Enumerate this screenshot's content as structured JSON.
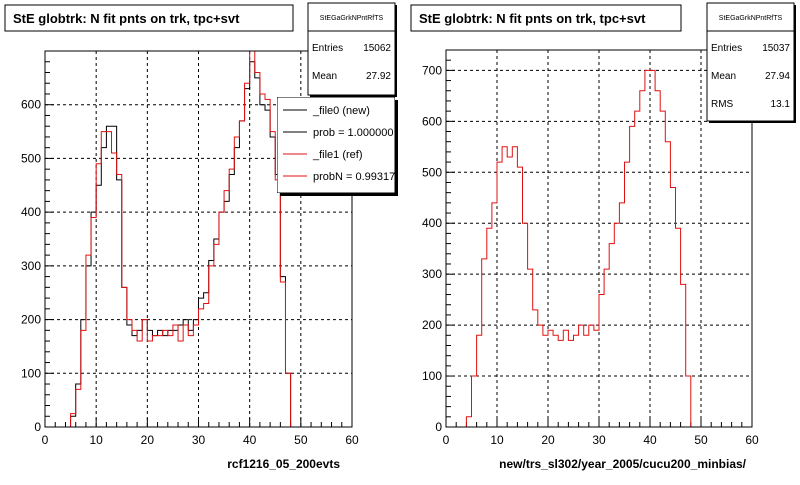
{
  "chart_data": [
    {
      "type": "histogram",
      "title": "StE globtrk: N fit pnts on trk, tpc+svt",
      "xlabel": "rcf1216_05_200evts",
      "xlim": [
        0,
        60
      ],
      "ylim": [
        0,
        700
      ],
      "bin_width": 1,
      "x_ticks": [
        "0",
        "10",
        "20",
        "30",
        "40",
        "50",
        "60"
      ],
      "y_ticks": [
        "0",
        "100",
        "200",
        "300",
        "400",
        "500",
        "600"
      ],
      "grid": true,
      "stats": {
        "name": "StEGaGrkNPntRfTS",
        "rows": [
          {
            "label": "Entries",
            "value": "15062"
          },
          {
            "label": "Mean",
            "value": "27.92"
          }
        ]
      },
      "legend": {
        "placement": "right",
        "entries": [
          {
            "label": "_file0 (new)",
            "color": "#000000"
          },
          {
            "label": "prob = 1.000000",
            "color": "#000000"
          },
          {
            "label": "_file1 (ref)",
            "color": "#e01010"
          },
          {
            "label": "probN = 0.99317",
            "color": "#e01010"
          }
        ]
      },
      "series": [
        {
          "name": "_file0 (new)",
          "color": "#000000",
          "x_start": 0,
          "values": [
            0,
            0,
            0,
            0,
            0,
            20,
            80,
            200,
            300,
            400,
            450,
            520,
            560,
            560,
            460,
            260,
            190,
            170,
            180,
            200,
            180,
            170,
            180,
            170,
            180,
            180,
            190,
            200,
            180,
            200,
            240,
            250,
            310,
            350,
            400,
            420,
            470,
            520,
            570,
            630,
            680,
            650,
            600,
            590,
            540,
            470,
            280,
            100,
            0,
            0
          ]
        },
        {
          "name": "_file1 (ref)",
          "color": "#e01010",
          "x_start": 0,
          "values": [
            0,
            0,
            0,
            0,
            0,
            25,
            70,
            180,
            320,
            390,
            490,
            550,
            550,
            510,
            470,
            260,
            200,
            180,
            160,
            200,
            160,
            170,
            170,
            180,
            170,
            190,
            160,
            190,
            170,
            190,
            220,
            230,
            300,
            340,
            400,
            440,
            480,
            540,
            570,
            640,
            700,
            660,
            620,
            610,
            550,
            460,
            270,
            100,
            0,
            0
          ]
        }
      ]
    },
    {
      "type": "histogram",
      "title": "StE globtrk: N fit pnts on trk, tpc+svt",
      "xlabel": "new/trs_sl302/year_2005/cucu200_minbias/",
      "xlim": [
        0,
        60
      ],
      "ylim": [
        0,
        740
      ],
      "bin_width": 1,
      "x_ticks": [
        "0",
        "10",
        "20",
        "30",
        "40",
        "50",
        "60"
      ],
      "y_ticks": [
        "0",
        "100",
        "200",
        "300",
        "400",
        "500",
        "600",
        "700"
      ],
      "grid": true,
      "stats": {
        "name": "StEGaGrkNPntRfTS",
        "rows": [
          {
            "label": "Entries",
            "value": "15037"
          },
          {
            "label": "Mean",
            "value": "27.94"
          },
          {
            "label": "RMS",
            "value": "13.1"
          }
        ]
      },
      "series": [
        {
          "name": "",
          "color": "#e01010",
          "x_start": 0,
          "values": [
            0,
            0,
            0,
            0,
            20,
            100,
            180,
            330,
            390,
            440,
            520,
            550,
            530,
            550,
            510,
            400,
            310,
            230,
            200,
            180,
            190,
            180,
            170,
            190,
            170,
            180,
            200,
            180,
            200,
            190,
            260,
            310,
            360,
            400,
            440,
            520,
            590,
            620,
            660,
            700,
            700,
            660,
            620,
            560,
            470,
            390,
            280,
            100,
            0,
            0
          ]
        }
      ]
    }
  ]
}
